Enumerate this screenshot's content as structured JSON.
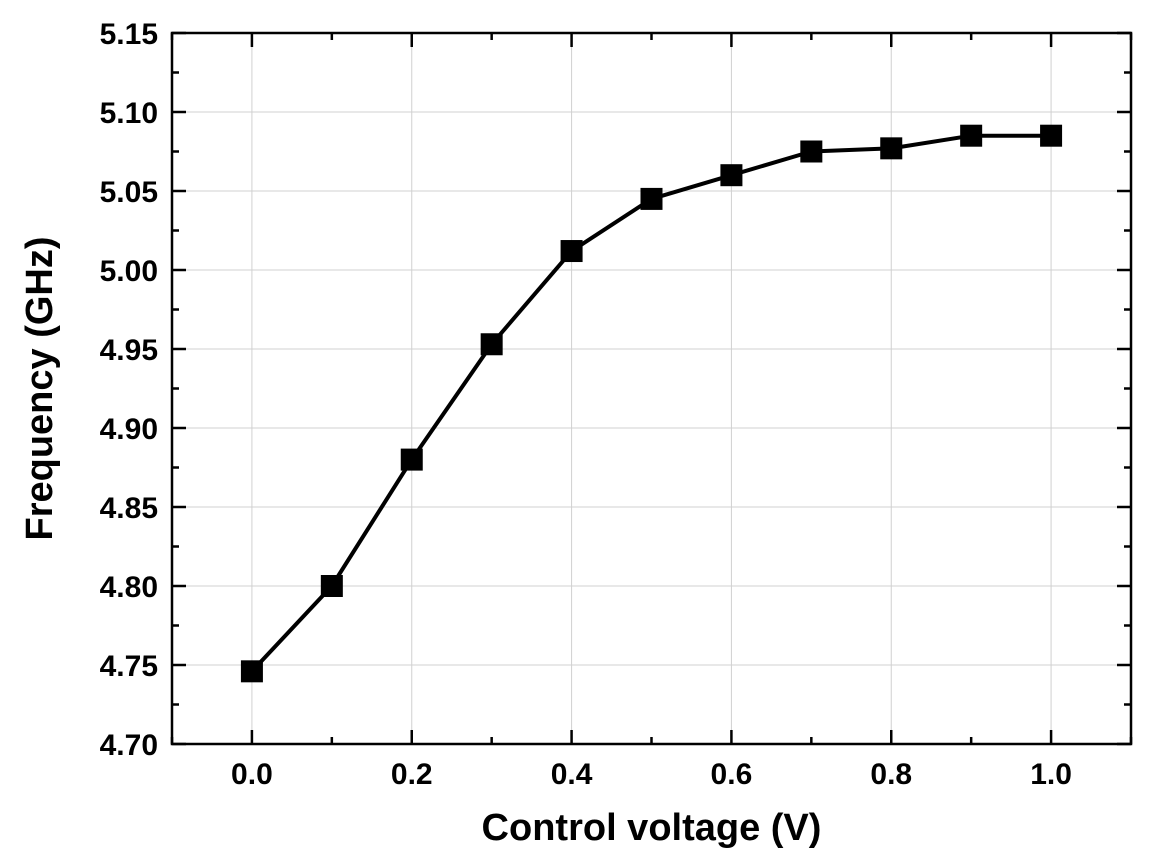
{
  "chart_data": {
    "type": "line",
    "xlabel": "Control voltage (V)",
    "ylabel": "Frequency (GHz)",
    "xlim": [
      -0.1,
      1.1
    ],
    "ylim": [
      4.7,
      5.15
    ],
    "x_ticks": [
      0.0,
      0.2,
      0.4,
      0.6,
      0.8,
      1.0
    ],
    "x_tick_labels": [
      "0.0",
      "0.2",
      "0.4",
      "0.6",
      "0.8",
      "1.0"
    ],
    "y_ticks": [
      4.7,
      4.75,
      4.8,
      4.85,
      4.9,
      4.95,
      5.0,
      5.05,
      5.1,
      5.15
    ],
    "y_tick_labels": [
      "4.70",
      "4.75",
      "4.80",
      "4.85",
      "4.90",
      "4.95",
      "5.00",
      "5.05",
      "5.10",
      "5.15"
    ],
    "grid": true,
    "series": [
      {
        "marker": "square",
        "color": "#000000",
        "x": [
          0.0,
          0.1,
          0.2,
          0.3,
          0.4,
          0.5,
          0.6,
          0.7,
          0.8,
          0.9,
          1.0
        ],
        "y": [
          4.746,
          4.8,
          4.88,
          4.953,
          5.012,
          5.045,
          5.06,
          5.075,
          5.077,
          5.085,
          5.085
        ]
      }
    ]
  }
}
